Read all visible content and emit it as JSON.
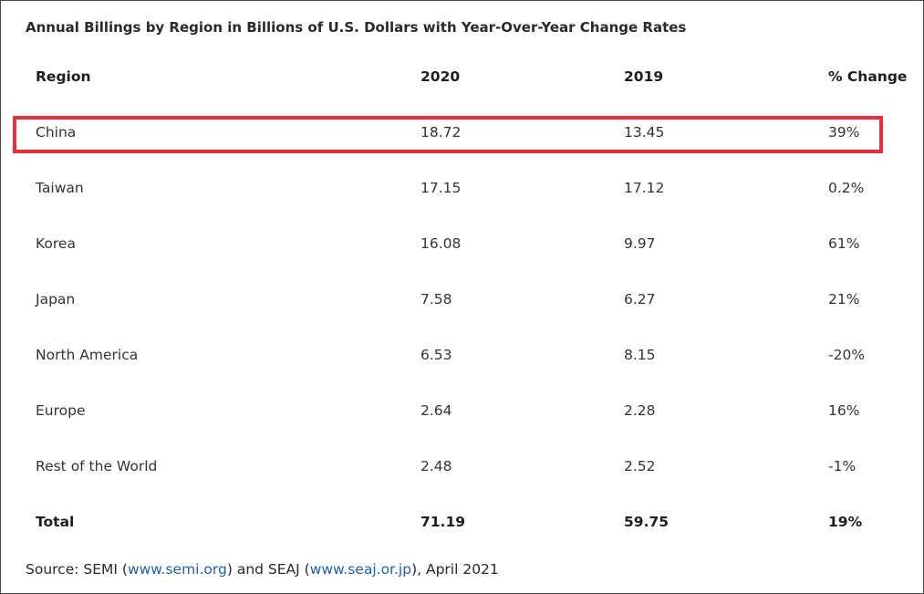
{
  "title": "Annual Billings by Region in Billions of U.S. Dollars with Year-Over-Year Change Rates",
  "table": {
    "headers": [
      "Region",
      "2020",
      "2019",
      "% Change"
    ],
    "rows": [
      [
        "China",
        "18.72",
        "13.45",
        "39%"
      ],
      [
        "Taiwan",
        "17.15",
        "17.12",
        "0.2%"
      ],
      [
        "Korea",
        "16.08",
        "9.97",
        "61%"
      ],
      [
        "Japan",
        "7.58",
        "6.27",
        "21%"
      ],
      [
        "North America",
        "6.53",
        "8.15",
        "-20%"
      ],
      [
        "Europe",
        "2.64",
        "2.28",
        "16%"
      ],
      [
        "Rest of the World",
        "2.48",
        "2.52",
        "-1%"
      ]
    ],
    "total": [
      "Total",
      "71.19",
      "59.75",
      "19%"
    ],
    "highlighted_row": "China"
  },
  "source": {
    "prefix": "Source: SEMI (",
    "semi_link": "www.semi.org",
    "middle": ") and SEAJ (",
    "seaj_link": "www.seaj.or.jp",
    "suffix": "), April 2021"
  },
  "colors": {
    "highlight_border": "#e8303a",
    "link": "#1f5fae"
  }
}
